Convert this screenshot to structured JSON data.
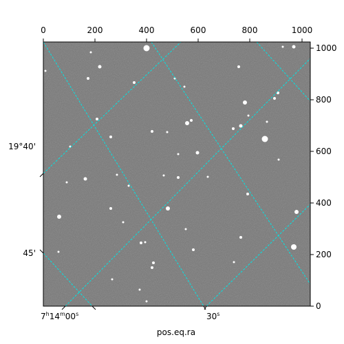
{
  "image": {
    "description_type": "astronomical-grayscale-field",
    "colors": {
      "background": "#777777",
      "grid": "#00e5e5",
      "stars": "#ffffff",
      "frame": "#000000"
    }
  },
  "axes": {
    "top_ticks": [
      "0",
      "200",
      "400",
      "600",
      "800",
      "1000"
    ],
    "right_ticks": [
      "0",
      "200",
      "400",
      "600",
      "800",
      "1000"
    ],
    "left_ticks": [
      "19°40'",
      "45'"
    ],
    "bottom_ticks": {
      "first": {
        "h": "7",
        "hs": "h",
        "m": "14",
        "ms": "m",
        "s": "00",
        "ss": "s"
      },
      "second": {
        "s": "30",
        "ss": "s"
      }
    },
    "xlabel": "pos.eq.ra"
  },
  "stars": [
    [
      213,
      70,
      4.5
    ],
    [
      145,
      97,
      2.5
    ],
    [
      128,
      114,
      2
    ],
    [
      195,
      120,
      2
    ],
    [
      254,
      114,
      1.5
    ],
    [
      347,
      97,
      2
    ],
    [
      268,
      126,
      1.5
    ],
    [
      66,
      103,
      1.5
    ],
    [
      427,
      68,
      2.5
    ],
    [
      411,
      68,
      1.5
    ],
    [
      132,
      76,
      1.5
    ],
    [
      356,
      149,
      3
    ],
    [
      404,
      135,
      2
    ],
    [
      399,
      143,
      2
    ],
    [
      272,
      179,
      3
    ],
    [
      278,
      175,
      2
    ],
    [
      141,
      173,
      2
    ],
    [
      221,
      191,
      2
    ],
    [
      243,
      192,
      1.5
    ],
    [
      161,
      199,
      2
    ],
    [
      350,
      183,
      2.5
    ],
    [
      339,
      187,
      2
    ],
    [
      385,
      202,
      4.5
    ],
    [
      388,
      177,
      1.5
    ],
    [
      361,
      168,
      1.5
    ],
    [
      287,
      222,
      2.5
    ],
    [
      259,
      224,
      1.5
    ],
    [
      124,
      260,
      2.5
    ],
    [
      238,
      255,
      1.5
    ],
    [
      259,
      258,
      2
    ],
    [
      97,
      265,
      1.5
    ],
    [
      360,
      282,
      2
    ],
    [
      244,
      303,
      3
    ],
    [
      161,
      303,
      2
    ],
    [
      86,
      315,
      3
    ],
    [
      431,
      308,
      3
    ],
    [
      270,
      333,
      1.5
    ],
    [
      350,
      345,
      2
    ],
    [
      205,
      353,
      2
    ],
    [
      211,
      352,
      1.5
    ],
    [
      281,
      363,
      2
    ],
    [
      427,
      359,
      4
    ],
    [
      85,
      366,
      1.5
    ],
    [
      223,
      382,
      2
    ],
    [
      221,
      389,
      2
    ],
    [
      340,
      381,
      1.5
    ],
    [
      163,
      406,
      1.5
    ],
    [
      203,
      421,
      1.5
    ],
    [
      213,
      438,
      1.5
    ],
    [
      102,
      213,
      1.5
    ],
    [
      187,
      270,
      1.5
    ],
    [
      170,
      254,
      1.5
    ],
    [
      405,
      232,
      1.5
    ],
    [
      179,
      323,
      1.5
    ],
    [
      302,
      257,
      1.5
    ]
  ]
}
